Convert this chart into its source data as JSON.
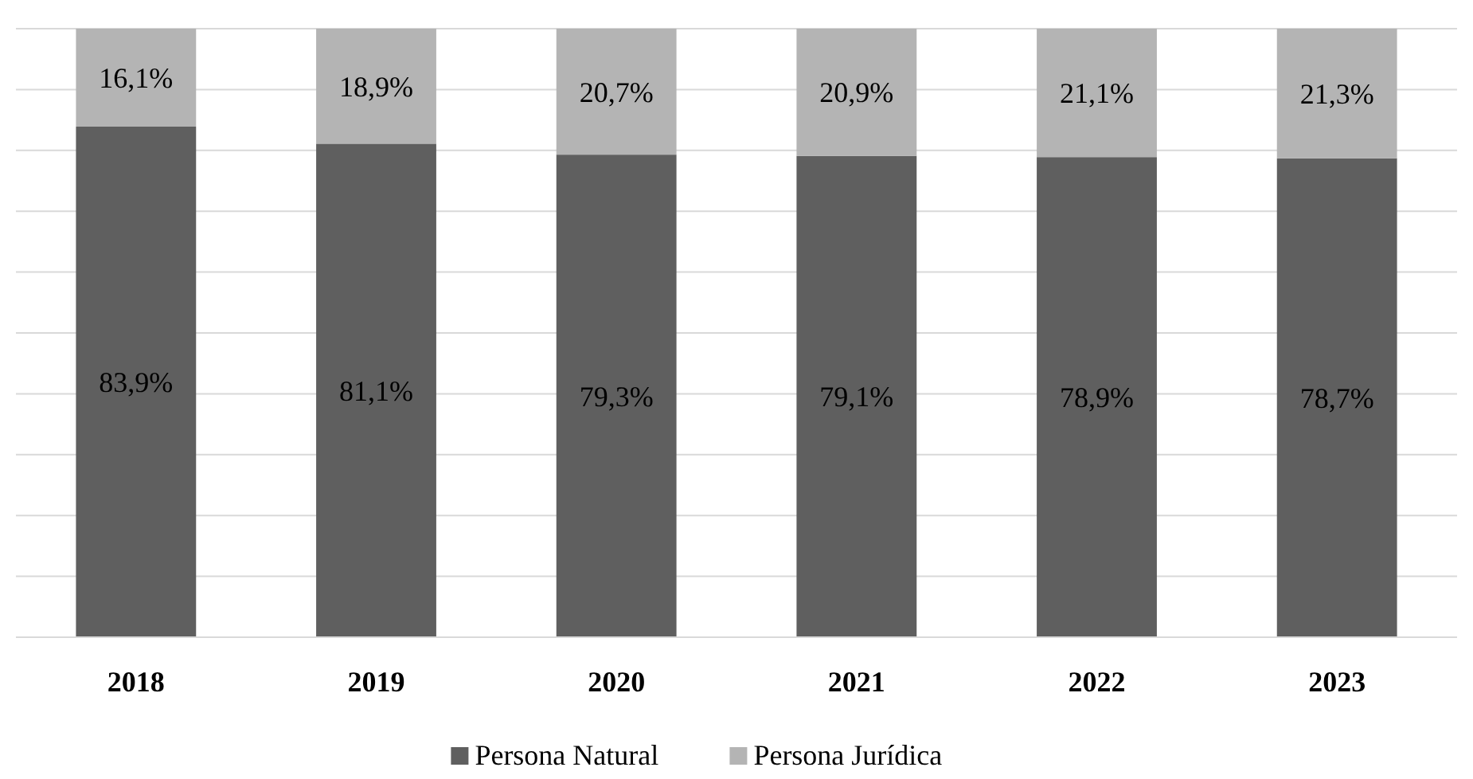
{
  "chart_data": {
    "type": "bar",
    "stacked": true,
    "categories": [
      "2018",
      "2019",
      "2020",
      "2021",
      "2022",
      "2023"
    ],
    "series": [
      {
        "name": "Persona Natural",
        "color": "#5f5f5f",
        "values": [
          83.9,
          81.1,
          79.3,
          79.1,
          78.9,
          78.7
        ],
        "value_labels": [
          "83,9%",
          "81,1%",
          "79,3%",
          "79,1%",
          "78,9%",
          "78,7%"
        ]
      },
      {
        "name": "Persona Jurídica",
        "color": "#b4b4b4",
        "values": [
          16.1,
          18.9,
          20.7,
          20.9,
          21.1,
          21.3
        ],
        "value_labels": [
          "16,1%",
          "18,9%",
          "20,7%",
          "20,9%",
          "21,1%",
          "21,3%"
        ]
      }
    ],
    "ylim": [
      0,
      100
    ],
    "yticks": [
      {
        "value": 0,
        "label": null
      },
      {
        "value": 10,
        "label": null
      },
      {
        "value": 20,
        "label": null
      },
      {
        "value": 30,
        "label": null
      },
      {
        "value": 40,
        "label": null
      },
      {
        "value": 50,
        "label": null
      },
      {
        "value": 60,
        "label": null
      },
      {
        "value": 70,
        "label": null
      },
      {
        "value": 80,
        "label": null
      },
      {
        "value": 90,
        "label": null
      },
      {
        "value": 100,
        "label": null
      }
    ],
    "grid": "y",
    "tick_labels": "x",
    "legend": "bottom"
  }
}
